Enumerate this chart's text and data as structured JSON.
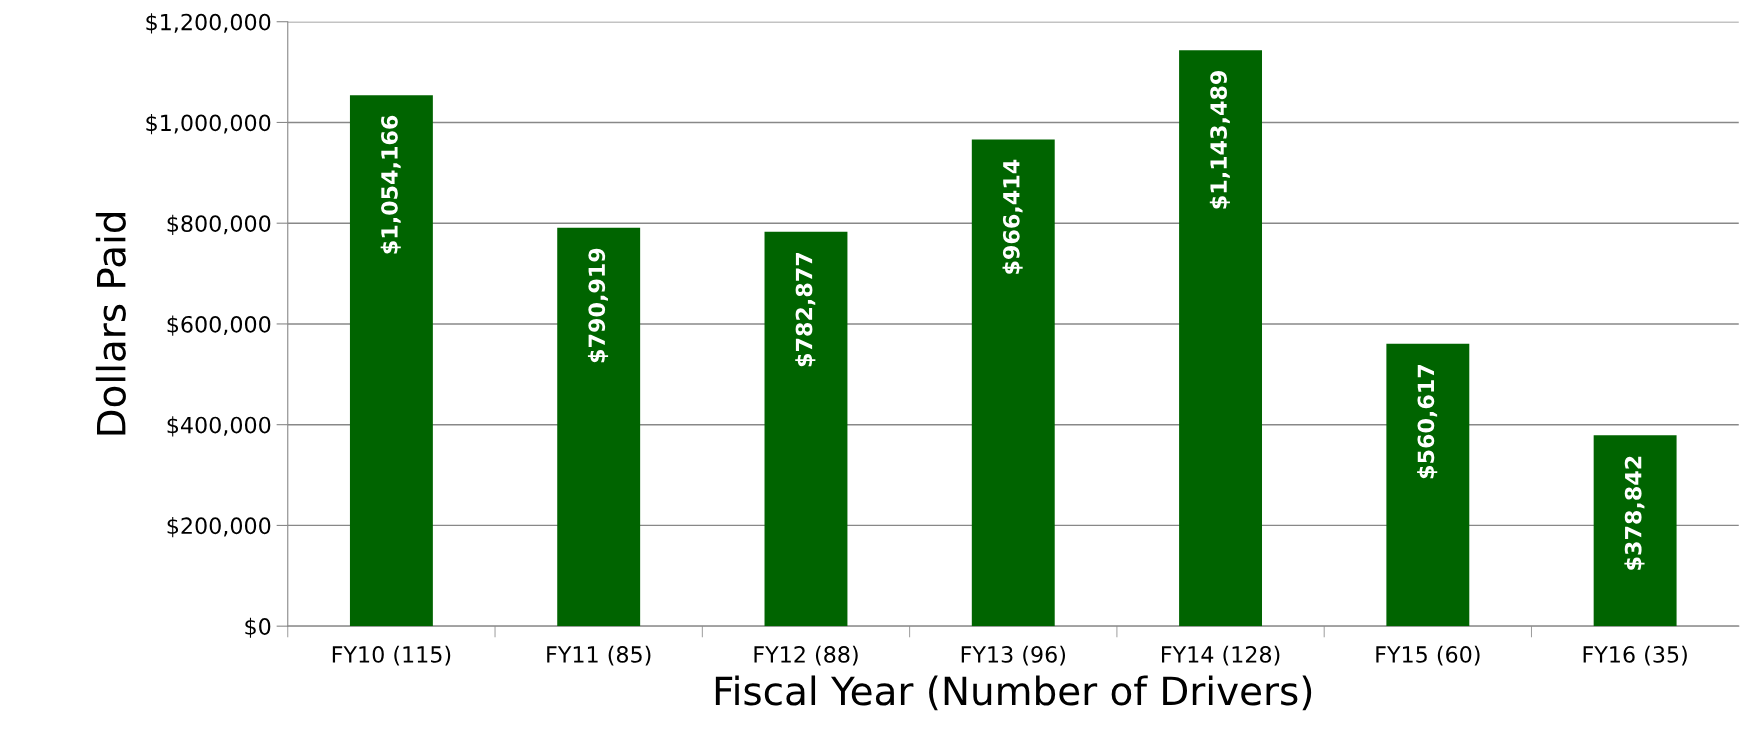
{
  "chart_data": {
    "type": "bar",
    "xlabel": "Fiscal Year (Number of Drivers)",
    "ylabel": "Dollars Paid",
    "categories": [
      "FY10 (115)",
      "FY11 (85)",
      "FY12 (88)",
      "FY13 (96)",
      "FY14 (128)",
      "FY15 (60)",
      "FY16 (35)"
    ],
    "values": [
      1054166,
      790919,
      782877,
      966414,
      1143489,
      560617,
      378842
    ],
    "value_labels": [
      "$1,054,166",
      "$790,919",
      "$782,877",
      "$966,414",
      "$1,143,489",
      "$560,617",
      "$378,842"
    ],
    "color": "#006400",
    "ylim": [
      0,
      1200000
    ],
    "yticks": [
      {
        "value": 0,
        "label": "$0"
      },
      {
        "value": 200000,
        "label": "$200,000"
      },
      {
        "value": 400000,
        "label": "$400,000"
      },
      {
        "value": 600000,
        "label": "$600,000"
      },
      {
        "value": 800000,
        "label": "$800,000"
      },
      {
        "value": 1000000,
        "label": "$1,000,000"
      },
      {
        "value": 1200000,
        "label": "$1,200,000"
      }
    ],
    "grid": "y",
    "legend": false
  }
}
